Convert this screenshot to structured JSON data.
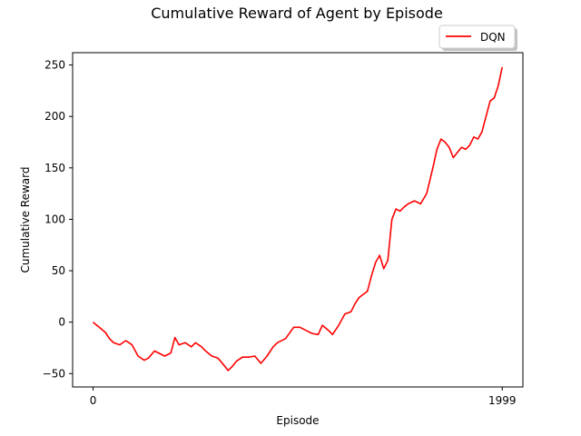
{
  "chart_data": {
    "type": "line",
    "title": "Cumulative Reward of Agent by Episode",
    "xlabel": "Episode",
    "ylabel": "Cumulative Reward",
    "xlim": [
      -100,
      2100
    ],
    "ylim": [
      -63,
      262
    ],
    "xticks": [
      0,
      1999
    ],
    "xtick_labels": [
      "0",
      "1999"
    ],
    "yticks": [
      -50,
      0,
      50,
      100,
      150,
      200,
      250
    ],
    "ytick_labels": [
      "−50",
      "0",
      "50",
      "100",
      "150",
      "200",
      "250"
    ],
    "grid": false,
    "legend": {
      "placement": "top-right-outside",
      "entries": [
        "DQN"
      ]
    },
    "series": [
      {
        "name": "DQN",
        "color": "#ff0000",
        "x": [
          0,
          30,
          60,
          80,
          100,
          130,
          160,
          190,
          220,
          250,
          270,
          300,
          320,
          350,
          380,
          400,
          420,
          450,
          480,
          500,
          530,
          550,
          580,
          610,
          640,
          660,
          680,
          700,
          730,
          760,
          790,
          820,
          850,
          880,
          900,
          940,
          980,
          1010,
          1040,
          1070,
          1100,
          1120,
          1150,
          1170,
          1200,
          1230,
          1260,
          1280,
          1300,
          1320,
          1340,
          1360,
          1380,
          1400,
          1420,
          1440,
          1460,
          1480,
          1500,
          1520,
          1540,
          1570,
          1600,
          1630,
          1660,
          1680,
          1700,
          1720,
          1740,
          1760,
          1780,
          1800,
          1820,
          1840,
          1860,
          1880,
          1900,
          1920,
          1940,
          1960,
          1980,
          1999
        ],
        "y": [
          0,
          -5,
          -10,
          -16,
          -20,
          -22,
          -18,
          -22,
          -33,
          -37,
          -35,
          -28,
          -30,
          -33,
          -30,
          -15,
          -22,
          -20,
          -24,
          -20,
          -24,
          -28,
          -33,
          -35,
          -42,
          -47,
          -43,
          -38,
          -34,
          -34,
          -33,
          -40,
          -33,
          -24,
          -20,
          -16,
          -5,
          -5,
          -8,
          -11,
          -12,
          -3,
          -8,
          -12,
          -3,
          8,
          10,
          18,
          24,
          27,
          30,
          45,
          58,
          65,
          52,
          60,
          100,
          110,
          108,
          112,
          115,
          118,
          115,
          125,
          150,
          168,
          178,
          175,
          170,
          160,
          165,
          170,
          168,
          172,
          180,
          178,
          185,
          200,
          215,
          218,
          230,
          248
        ]
      }
    ]
  }
}
